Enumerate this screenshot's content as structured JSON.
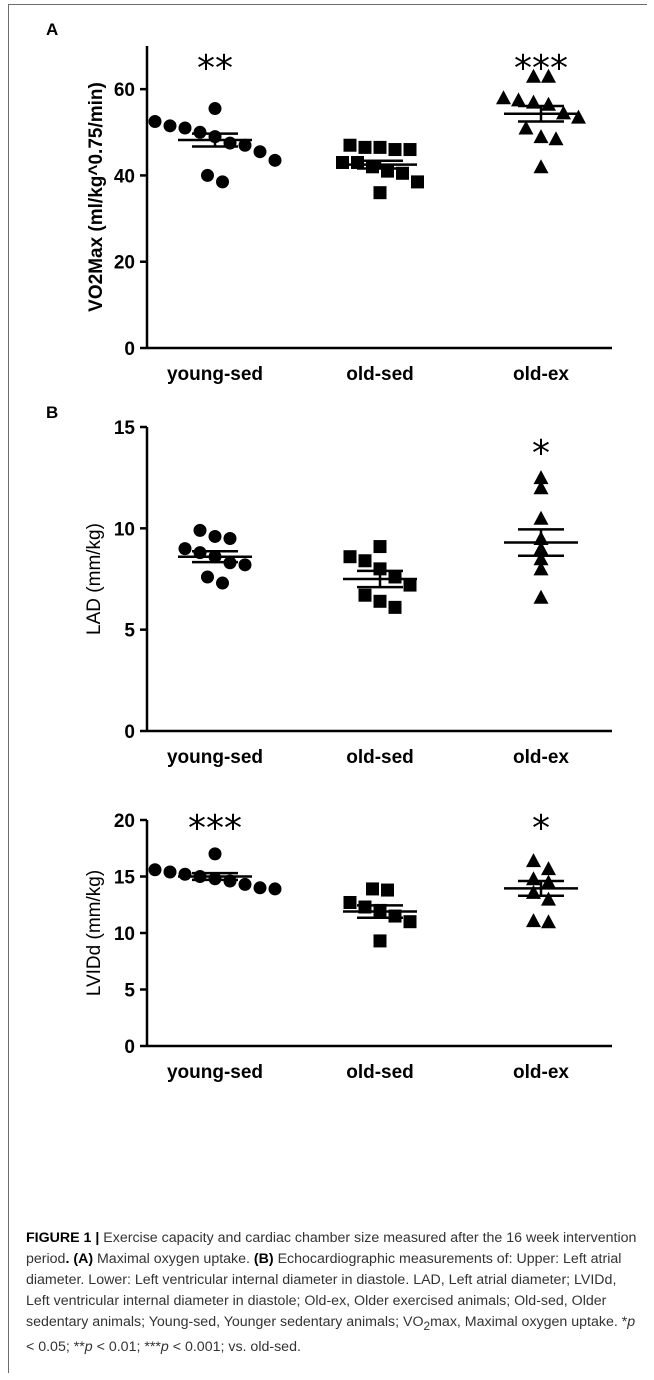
{
  "panel_letters": {
    "a": "A",
    "b": "B"
  },
  "chart_data": [
    {
      "type": "scatter",
      "panel": "A",
      "ylabel": "VO2Max (ml/kg^0.75/min)",
      "ylim": [
        0,
        70
      ],
      "yticks": [
        0,
        20,
        40,
        60
      ],
      "categories": [
        "young-sed",
        "old-sed",
        "old-ex"
      ],
      "series": [
        {
          "marker": "circle",
          "points": [
            52.5,
            55.5,
            51,
            51.5,
            49,
            50,
            47.5,
            45.5,
            43.5,
            40,
            38.5,
            47
          ],
          "mean": 48.2,
          "sem": 1.5
        },
        {
          "marker": "square",
          "points": [
            47,
            46.5,
            46.5,
            46,
            46,
            43,
            43,
            42,
            41,
            40.5,
            38.5,
            36
          ],
          "mean": 42.5,
          "sem": 0.9
        },
        {
          "marker": "triangle",
          "points": [
            63,
            63,
            58,
            57.5,
            56.5,
            57,
            54.5,
            53.5,
            51,
            49,
            48.5,
            42
          ],
          "mean": 54.3,
          "sem": 1.8
        }
      ],
      "significance": [
        "**",
        "",
        "***"
      ]
    },
    {
      "type": "scatter",
      "panel": "B-upper",
      "ylabel": "LAD (mm/kg)",
      "ylim": [
        0,
        15
      ],
      "yticks": [
        0,
        5,
        10,
        15
      ],
      "categories": [
        "young-sed",
        "old-sed",
        "old-ex"
      ],
      "series": [
        {
          "marker": "circle",
          "points": [
            9.9,
            9.6,
            9.5,
            9.0,
            8.8,
            8.6,
            8.3,
            8.2,
            7.6,
            7.3
          ],
          "mean": 8.6,
          "sem": 0.27
        },
        {
          "marker": "square",
          "points": [
            9.1,
            8.6,
            8.4,
            8.0,
            7.6,
            7.2,
            6.7,
            6.4,
            6.1
          ],
          "mean": 7.5,
          "sem": 0.4
        },
        {
          "marker": "triangle",
          "points": [
            12.5,
            12.0,
            10.5,
            9.5,
            9.0,
            8.5,
            8.0,
            6.6
          ],
          "mean": 9.3,
          "sem": 0.65
        }
      ],
      "significance": [
        "",
        "",
        "*"
      ]
    },
    {
      "type": "scatter",
      "panel": "B-lower",
      "ylabel": "LVIDd (mm/kg)",
      "ylim": [
        0,
        20
      ],
      "yticks": [
        0,
        5,
        10,
        15,
        20
      ],
      "categories": [
        "young-sed",
        "old-sed",
        "old-ex"
      ],
      "series": [
        {
          "marker": "circle",
          "points": [
            17.0,
            15.6,
            15.4,
            15.2,
            15.0,
            14.8,
            14.6,
            14.3,
            14.0,
            13.9
          ],
          "mean": 15.0,
          "sem": 0.3
        },
        {
          "marker": "square",
          "points": [
            13.9,
            13.8,
            12.7,
            12.3,
            12.0,
            11.5,
            11.0,
            9.3
          ],
          "mean": 11.9,
          "sem": 0.55
        },
        {
          "marker": "triangle",
          "points": [
            16.4,
            15.7,
            14.8,
            14.5,
            13.6,
            13.0,
            11.1,
            11.0
          ],
          "mean": 13.95,
          "sem": 0.65
        }
      ],
      "significance": [
        "***",
        "",
        "*"
      ]
    }
  ],
  "caption": {
    "label": "FIGURE 1 |",
    "text1": " Exercise capacity and cardiac chamber size measured after the 16 week intervention period",
    "dot1": ".",
    "a_label": " (A)",
    "text2": " Maximal oxygen uptake.",
    "b_label": " (B)",
    "text3": " Echocardiographic measurements of: Upper: Left atrial diameter. Lower: Left ventricular internal diameter in diastole. LAD, Left atrial diameter; LVIDd, Left ventricular internal diameter in diastole; Old-ex, Older exercised animals; Old-sed, Older sedentary animals; Young-sed, Younger sedentary animals; VO",
    "sub": "2",
    "text4": "max, Maximal oxygen uptake. *",
    "p1": "p",
    "t5": " < 0.05; **",
    "p2": "p",
    "t6": " < 0.01; ***",
    "p3": "p",
    "t7": " < 0.001; vs. old-sed."
  }
}
